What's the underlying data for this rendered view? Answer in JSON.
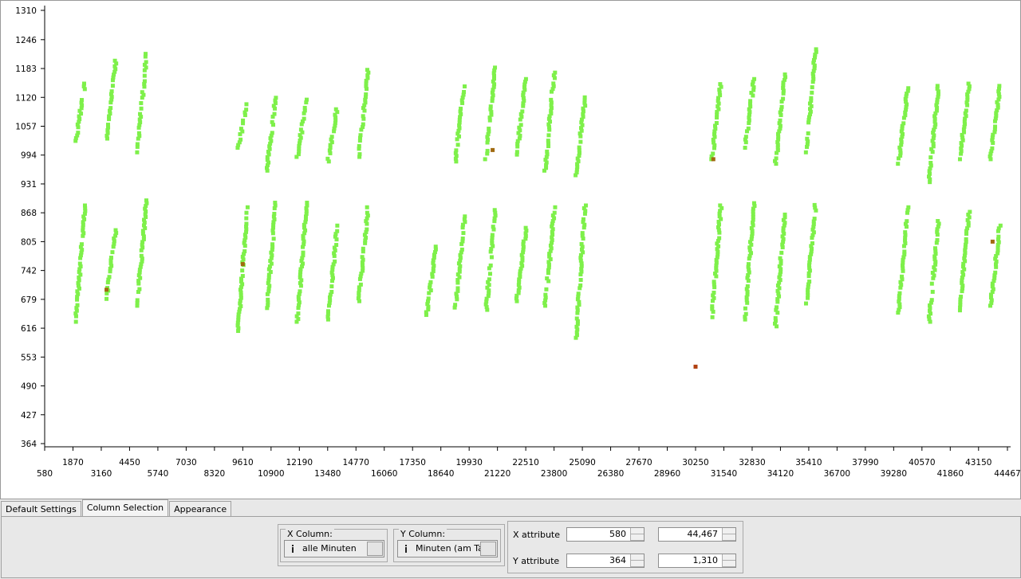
{
  "tabs": [
    "Default Settings",
    "Column Selection",
    "Appearance"
  ],
  "x_column": {
    "label": "X Column:",
    "value": "alle Minuten"
  },
  "y_column": {
    "label": "Y Column:",
    "value": "Minuten (am Tag)"
  },
  "x_attribute": {
    "label": "X attribute",
    "min": "580",
    "max": "44,467"
  },
  "y_attribute": {
    "label": "Y attribute",
    "min": "364",
    "max": "1,310"
  },
  "colors": {
    "point": "#7ef04a",
    "highlight": "#a06a10",
    "selected": "#b04010"
  },
  "chart_data": {
    "type": "scatter",
    "xlim": [
      580,
      44467
    ],
    "ylim": [
      364,
      1310
    ],
    "x_ticks": [
      "580",
      "1870",
      "3160",
      "4450",
      "5740",
      "7030",
      "8320",
      "9610",
      "10900",
      "12190",
      "13480",
      "14770",
      "16060",
      "17350",
      "18640",
      "19930",
      "21220",
      "22510",
      "23800",
      "25090",
      "26380",
      "27670",
      "28960",
      "30250",
      "31540",
      "32830",
      "34120",
      "35410",
      "36700",
      "37990",
      "39280",
      "40570",
      "41860",
      "43150",
      "44467"
    ],
    "y_ticks": [
      "364",
      "427",
      "490",
      "553",
      "616",
      "679",
      "742",
      "805",
      "868",
      "931",
      "994",
      "1057",
      "1120",
      "1183",
      "1246",
      "1310"
    ],
    "days": [
      {
        "x": 2000,
        "low": [
          630,
          890
        ],
        "high": [
          1025,
          1150
        ]
      },
      {
        "x": 3400,
        "low": [
          680,
          830
        ],
        "high": [
          1030,
          1200
        ]
      },
      {
        "x": 4800,
        "low": [
          665,
          895
        ],
        "high": [
          1000,
          1215
        ]
      },
      {
        "x": 9400,
        "low": [
          610,
          880
        ],
        "high": [
          1010,
          1105
        ]
      },
      {
        "x": 10700,
        "low": [
          660,
          890
        ],
        "high": [
          960,
          1125
        ]
      },
      {
        "x": 12100,
        "low": [
          630,
          890
        ],
        "high": [
          990,
          1115
        ]
      },
      {
        "x": 13500,
        "low": [
          635,
          840
        ],
        "high": [
          980,
          1100
        ]
      },
      {
        "x": 14900,
        "low": [
          675,
          880
        ],
        "high": [
          990,
          1180
        ]
      },
      {
        "x": 18000,
        "low": [
          645,
          800
        ],
        "high": null
      },
      {
        "x": 19300,
        "low": [
          655,
          860
        ],
        "high": [
          980,
          1150
        ]
      },
      {
        "x": 20700,
        "low": [
          650,
          880
        ],
        "high": [
          985,
          1185
        ]
      },
      {
        "x": 22100,
        "low": [
          675,
          835
        ],
        "high": [
          995,
          1160
        ]
      },
      {
        "x": 23400,
        "low": [
          665,
          880
        ],
        "high": [
          960,
          1180
        ]
      },
      {
        "x": 24800,
        "low": [
          595,
          890
        ],
        "high": [
          950,
          1120
        ]
      },
      {
        "x": 31000,
        "low": [
          640,
          890
        ],
        "high": [
          985,
          1155
        ]
      },
      {
        "x": 32500,
        "low": [
          635,
          895
        ],
        "high": [
          1010,
          1160
        ]
      },
      {
        "x": 33900,
        "low": [
          620,
          870
        ],
        "high": [
          975,
          1170
        ]
      },
      {
        "x": 35300,
        "low": [
          670,
          885
        ],
        "high": [
          1000,
          1225
        ]
      },
      {
        "x": 39500,
        "low": [
          650,
          880
        ],
        "high": [
          975,
          1140
        ]
      },
      {
        "x": 40900,
        "low": [
          630,
          850
        ],
        "high": [
          935,
          1145
        ]
      },
      {
        "x": 42300,
        "low": [
          655,
          870
        ],
        "high": [
          985,
          1150
        ]
      },
      {
        "x": 43700,
        "low": [
          665,
          840
        ],
        "high": [
          985,
          1145
        ]
      }
    ],
    "highlights": [
      [
        9610,
        756
      ],
      [
        3400,
        700
      ],
      [
        31060,
        985
      ],
      [
        43790,
        805
      ],
      [
        21000,
        1005
      ]
    ],
    "selected": [
      [
        30250,
        532
      ]
    ]
  }
}
